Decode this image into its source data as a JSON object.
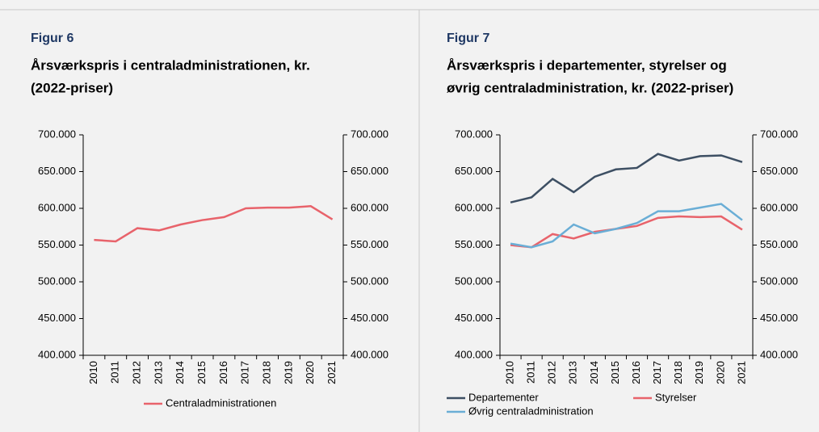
{
  "chart_data": [
    {
      "type": "line",
      "label": "Figur 6",
      "title": [
        "Årsværkspris i centraladministrationen, kr.",
        "(2022-priser)"
      ],
      "categories": [
        "2010",
        "2011",
        "2012",
        "2013",
        "2014",
        "2015",
        "2016",
        "2017",
        "2018",
        "2019",
        "2020",
        "2021"
      ],
      "series": [
        {
          "name": "Centraladministrationen",
          "color": "#e8636b",
          "values": [
            557000,
            555000,
            573000,
            570000,
            578000,
            584000,
            588000,
            600000,
            601000,
            601000,
            603000,
            585000
          ]
        }
      ],
      "ylim": [
        400000,
        700000
      ],
      "yticks": [
        {
          "value": 400000,
          "label": "400.000"
        },
        {
          "value": 450000,
          "label": "450.000"
        },
        {
          "value": 500000,
          "label": "500.000"
        },
        {
          "value": 550000,
          "label": "550.000"
        },
        {
          "value": 600000,
          "label": "600.000"
        },
        {
          "value": 650000,
          "label": "650.000"
        },
        {
          "value": 700000,
          "label": "700.000"
        }
      ],
      "y2lim": [
        400000,
        700000
      ],
      "y2ticks": [
        {
          "value": 400000,
          "label": "400.000"
        },
        {
          "value": 450000,
          "label": "450.000"
        },
        {
          "value": 500000,
          "label": "500.000"
        },
        {
          "value": 550000,
          "label": "550.000"
        },
        {
          "value": 600000,
          "label": "600.000"
        },
        {
          "value": 650000,
          "label": "650.000"
        },
        {
          "value": 700000,
          "label": "700.000"
        }
      ],
      "legend": "bottom"
    },
    {
      "type": "line",
      "label": "Figur 7",
      "title": [
        "Årsværkspris i departementer, styrelser og",
        "øvrig centraladministration, kr. (2022-priser)"
      ],
      "categories": [
        "2010",
        "2011",
        "2012",
        "2013",
        "2014",
        "2015",
        "2016",
        "2017",
        "2018",
        "2019",
        "2020",
        "2021"
      ],
      "series": [
        {
          "name": "Departementer",
          "color": "#3d4f63",
          "values": [
            608000,
            615000,
            640000,
            622000,
            643000,
            653000,
            655000,
            674000,
            665000,
            671000,
            672000,
            663000
          ]
        },
        {
          "name": "Styrelser",
          "color": "#e8636b",
          "values": [
            550000,
            547000,
            565000,
            559000,
            568000,
            572000,
            576000,
            587000,
            589000,
            588000,
            589000,
            571000
          ]
        },
        {
          "name": "Øvrig centraladministration",
          "color": "#6aaed6",
          "values": [
            552000,
            547000,
            555000,
            578000,
            566000,
            572000,
            580000,
            596000,
            596000,
            601000,
            606000,
            584000
          ]
        }
      ],
      "ylim": [
        400000,
        700000
      ],
      "yticks": [
        {
          "value": 400000,
          "label": "400.000"
        },
        {
          "value": 450000,
          "label": "450.000"
        },
        {
          "value": 500000,
          "label": "500.000"
        },
        {
          "value": 550000,
          "label": "550.000"
        },
        {
          "value": 600000,
          "label": "600.000"
        },
        {
          "value": 650000,
          "label": "650.000"
        },
        {
          "value": 700000,
          "label": "700.000"
        }
      ],
      "y2lim": [
        400000,
        700000
      ],
      "y2ticks": [
        {
          "value": 400000,
          "label": "400.000"
        },
        {
          "value": 450000,
          "label": "450.000"
        },
        {
          "value": 500000,
          "label": "500.000"
        },
        {
          "value": 550000,
          "label": "550.000"
        },
        {
          "value": 600000,
          "label": "600.000"
        },
        {
          "value": 650000,
          "label": "650.000"
        },
        {
          "value": 700000,
          "label": "700.000"
        }
      ],
      "legend": "bottom"
    }
  ]
}
